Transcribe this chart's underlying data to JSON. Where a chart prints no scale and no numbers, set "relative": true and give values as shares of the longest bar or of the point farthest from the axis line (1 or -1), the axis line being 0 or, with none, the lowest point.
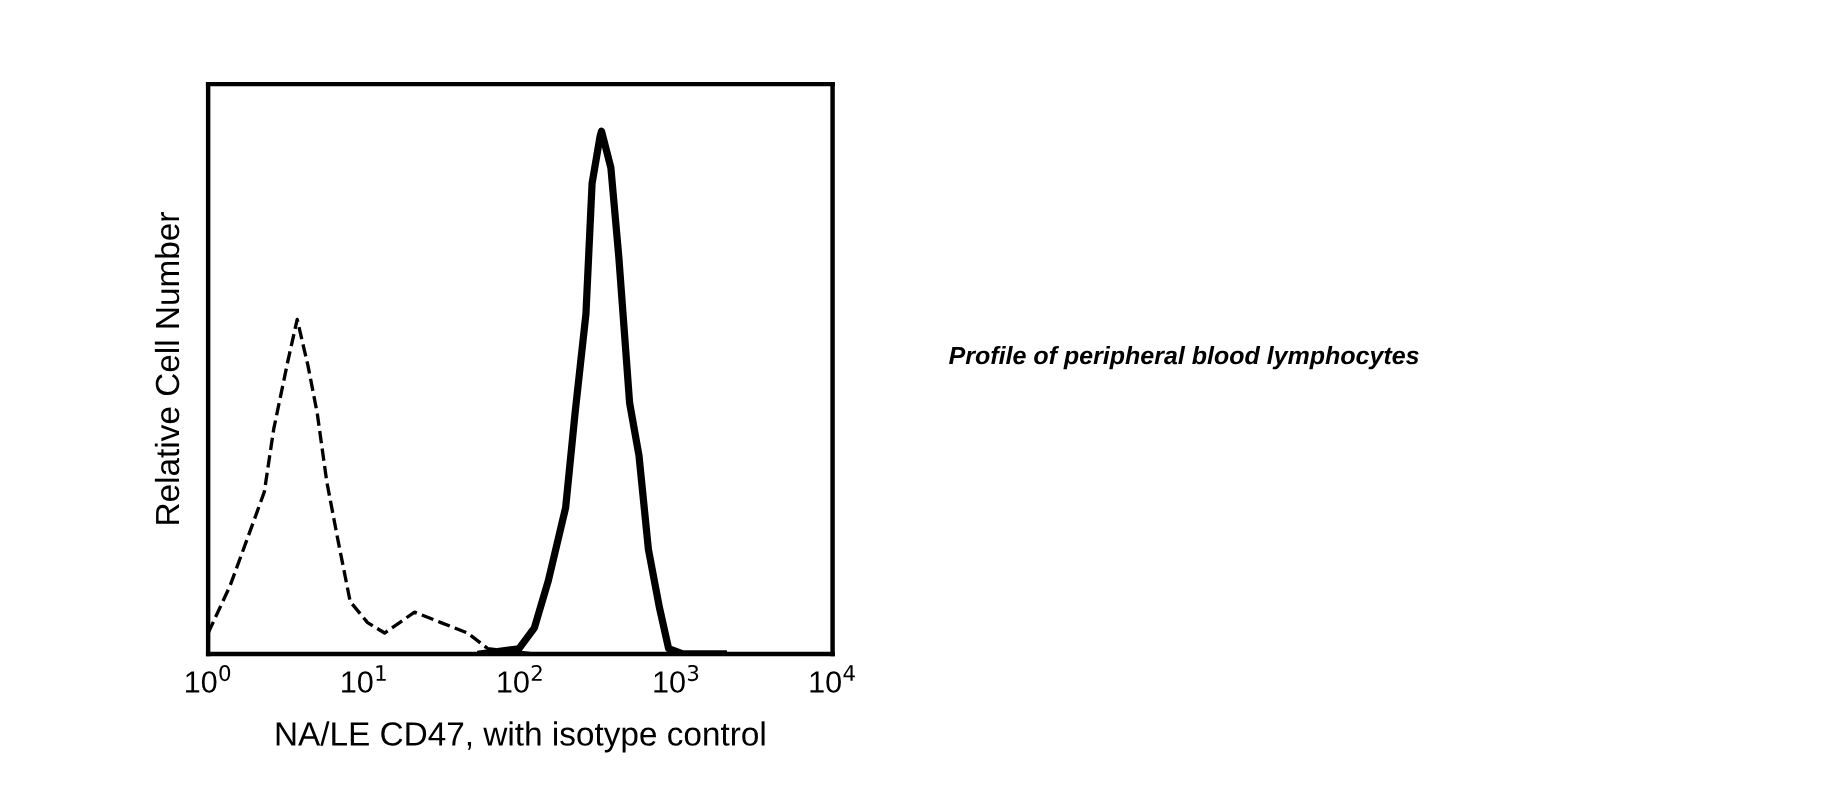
{
  "chart_data": {
    "type": "line",
    "xlabel": "NA/LE CD47, with isotype control",
    "ylabel": "Relative Cell Number",
    "relative": true,
    "log": "x",
    "xlim": [
      1,
      10000
    ],
    "xticks": [
      {
        "value": 1,
        "label": "10$^{0}$"
      },
      {
        "value": 10,
        "label": "10$^{1}$"
      },
      {
        "value": 100,
        "label": "10$^{2}$"
      },
      {
        "value": 1000,
        "label": "10$^{3}$"
      },
      {
        "value": 10000,
        "label": "10$^{4}$"
      }
    ],
    "tick_labels": "x",
    "grid": false,
    "legend": false,
    "series": [
      {
        "color": "#000000",
        "line_style": "dashed",
        "x": [
          1.0,
          1.38,
          1.78,
          2.29,
          2.63,
          3.24,
          3.72,
          4.37,
          5.0,
          5.75,
          6.76,
          8.13,
          10.5,
          13.5,
          21,
          31,
          46,
          62,
          123,
          891,
          2000
        ],
        "values": [
          0.04,
          0.13,
          0.22,
          0.31,
          0.43,
          0.56,
          0.64,
          0.55,
          0.46,
          0.33,
          0.22,
          0.1,
          0.06,
          0.04,
          0.08,
          0.06,
          0.04,
          0.01,
          0,
          0,
          0
        ]
      },
      {
        "color": "#000000",
        "line_style": "solid",
        "x": [
          56,
          98,
          123,
          151,
          195,
          224,
          263,
          288,
          324,
          331,
          380,
          427,
          501,
          575,
          661,
          776,
          891,
          1096,
          1995
        ],
        "values": [
          0,
          0.01,
          0.05,
          0.14,
          0.28,
          0.46,
          0.65,
          0.9,
          0.99,
          1.0,
          0.93,
          0.76,
          0.48,
          0.38,
          0.2,
          0.09,
          0.01,
          0,
          0
        ]
      }
    ],
    "annotations": [
      "Profile of peripheral blood lymphocytes"
    ]
  }
}
